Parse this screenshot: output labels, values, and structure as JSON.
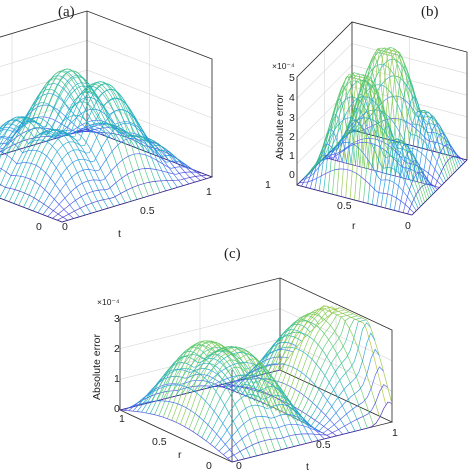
{
  "chart_data": [
    {
      "type": "surface",
      "panel_label": "(a)",
      "xlabel": "t",
      "ylabel": "",
      "zlabel": "",
      "x_tick_labels": [
        "0",
        "0.5",
        "1"
      ],
      "y_tick_labels": [
        "0"
      ],
      "z_tick_labels": [],
      "exponent_label": "",
      "colormap": "parula",
      "grid": true
    },
    {
      "type": "surface",
      "panel_label": "(b)",
      "xlabel": "",
      "ylabel": "r",
      "zlabel": "Absolute error",
      "x_tick_labels": [
        "1"
      ],
      "y_tick_labels": [
        "0.5",
        "0"
      ],
      "z_tick_labels": [
        "5",
        "4",
        "3",
        "2",
        "1",
        "0"
      ],
      "zlim": [
        0,
        5
      ],
      "exponent_label": "×10⁻⁴",
      "colormap": "parula",
      "grid": true
    },
    {
      "type": "surface",
      "panel_label": "(c)",
      "xlabel": "t",
      "ylabel": "r",
      "zlabel": "Absolute error",
      "x_tick_labels": [
        "0",
        "0.5",
        "1"
      ],
      "y_tick_labels": [
        "1",
        "0.5",
        "0"
      ],
      "z_tick_labels": [
        "3",
        "2",
        "1",
        "0"
      ],
      "zlim": [
        0,
        3
      ],
      "exponent_label": "×10⁻⁴",
      "colormap": "parula",
      "grid": true
    }
  ],
  "colors": {
    "parula_low": "#3e26a8",
    "parula_mid": "#1fb4c8",
    "parula_high": "#f9e526"
  }
}
